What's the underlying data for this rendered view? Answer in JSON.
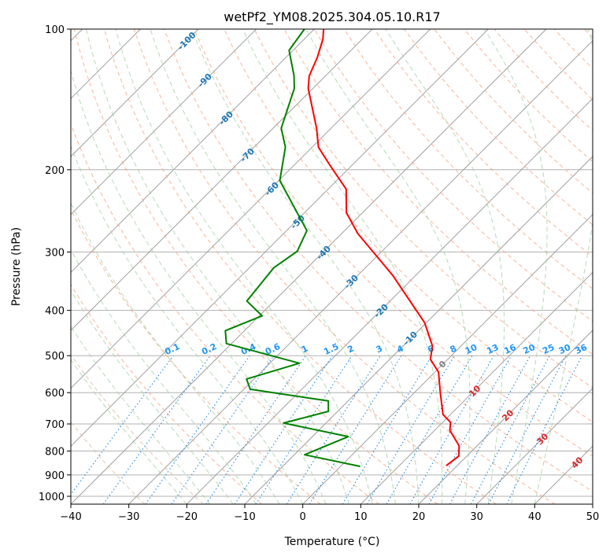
{
  "chart_data": {
    "type": "line",
    "subtype": "skew-t log-p",
    "title": "wetPf2_YM08.2025.304.05.10.R17",
    "xlabel": "Temperature (°C)",
    "ylabel": "Pressure (hPa)",
    "xlim": [
      -40,
      50
    ],
    "ylim": [
      1040,
      100
    ],
    "x_ticks": [
      "−40",
      "−30",
      "−20",
      "−10",
      "0",
      "10",
      "20",
      "30",
      "40",
      "50"
    ],
    "x_tick_values": [
      -40,
      -30,
      -20,
      -10,
      0,
      10,
      20,
      30,
      40,
      50
    ],
    "y_ticks": [
      "100",
      "200",
      "300",
      "400",
      "500",
      "600",
      "700",
      "800",
      "900",
      "1000"
    ],
    "y_tick_values": [
      100,
      200,
      300,
      400,
      500,
      600,
      700,
      800,
      900,
      1000
    ],
    "grid": true,
    "isotherm_labels": [
      {
        "text": "-100",
        "value": -100,
        "color": "#1f77b4"
      },
      {
        "text": "-90",
        "value": -90,
        "color": "#1f77b4"
      },
      {
        "text": "-80",
        "value": -80,
        "color": "#1f77b4"
      },
      {
        "text": "-70",
        "value": -70,
        "color": "#1f77b4"
      },
      {
        "text": "-60",
        "value": -60,
        "color": "#1f77b4"
      },
      {
        "text": "-50",
        "value": -50,
        "color": "#1f77b4"
      },
      {
        "text": "-40",
        "value": -40,
        "color": "#1f77b4"
      },
      {
        "text": "-30",
        "value": -30,
        "color": "#1f77b4"
      },
      {
        "text": "-20",
        "value": -20,
        "color": "#1f77b4"
      },
      {
        "text": "-10",
        "value": -10,
        "color": "#1f77b4"
      },
      {
        "text": "0",
        "value": 0,
        "color": "#808080"
      },
      {
        "text": "10",
        "value": 10,
        "color": "#d62728"
      },
      {
        "text": "20",
        "value": 20,
        "color": "#d62728"
      },
      {
        "text": "30",
        "value": 30,
        "color": "#d62728"
      },
      {
        "text": "40",
        "value": 40,
        "color": "#d62728"
      }
    ],
    "mixing_ratio_labels": [
      "0.1",
      "0.2",
      "0.4",
      "0.6",
      "1",
      "1.5",
      "2",
      "3",
      "4",
      "6",
      "8",
      "10",
      "13",
      "16",
      "20",
      "25",
      "30",
      "36"
    ],
    "mixing_ratio_values": [
      0.1,
      0.2,
      0.4,
      0.6,
      1,
      1.5,
      2,
      3,
      4,
      6,
      8,
      10,
      13,
      16,
      20,
      25,
      30,
      36
    ],
    "series": [
      {
        "name": "temperature",
        "color": "#ff0000",
        "points_p_T": [
          [
            100,
            -78.4
          ],
          [
            105,
            -76.8
          ],
          [
            115,
            -74.6
          ],
          [
            126,
            -72.8
          ],
          [
            134,
            -70.8
          ],
          [
            163,
            -62.5
          ],
          [
            179,
            -58.9
          ],
          [
            196,
            -53.7
          ],
          [
            220,
            -46.9
          ],
          [
            247,
            -42.8
          ],
          [
            274,
            -37.2
          ],
          [
            337,
            -23.9
          ],
          [
            364,
            -19.4
          ],
          [
            425,
            -10.3
          ],
          [
            477,
            -4.9
          ],
          [
            509,
            -3.0
          ],
          [
            542,
            0.6
          ],
          [
            602,
            4.6
          ],
          [
            668,
            8.7
          ],
          [
            695,
            11.4
          ],
          [
            722,
            12.6
          ],
          [
            780,
            16.9
          ],
          [
            820,
            18.6
          ],
          [
            860,
            18.1
          ]
        ]
      },
      {
        "name": "dewpoint",
        "color": "#008000",
        "points_p_T": [
          [
            100,
            -81.7
          ],
          [
            111,
            -80.7
          ],
          [
            126,
            -75.4
          ],
          [
            134,
            -73.2
          ],
          [
            163,
            -68.6
          ],
          [
            179,
            -64.6
          ],
          [
            211,
            -59.8
          ],
          [
            247,
            -51.3
          ],
          [
            270,
            -46.5
          ],
          [
            299,
            -44.6
          ],
          [
            324,
            -45.8
          ],
          [
            382,
            -44.7
          ],
          [
            411,
            -39.5
          ],
          [
            442,
            -43.3
          ],
          [
            471,
            -40.9
          ],
          [
            519,
            -24.9
          ],
          [
            561,
            -31.3
          ],
          [
            590,
            -28.9
          ],
          [
            625,
            -13.4
          ],
          [
            658,
            -11.6
          ],
          [
            697,
            -17.3
          ],
          [
            745,
            -3.8
          ],
          [
            815,
            -8.2
          ],
          [
            863,
            3.4
          ]
        ]
      }
    ]
  }
}
